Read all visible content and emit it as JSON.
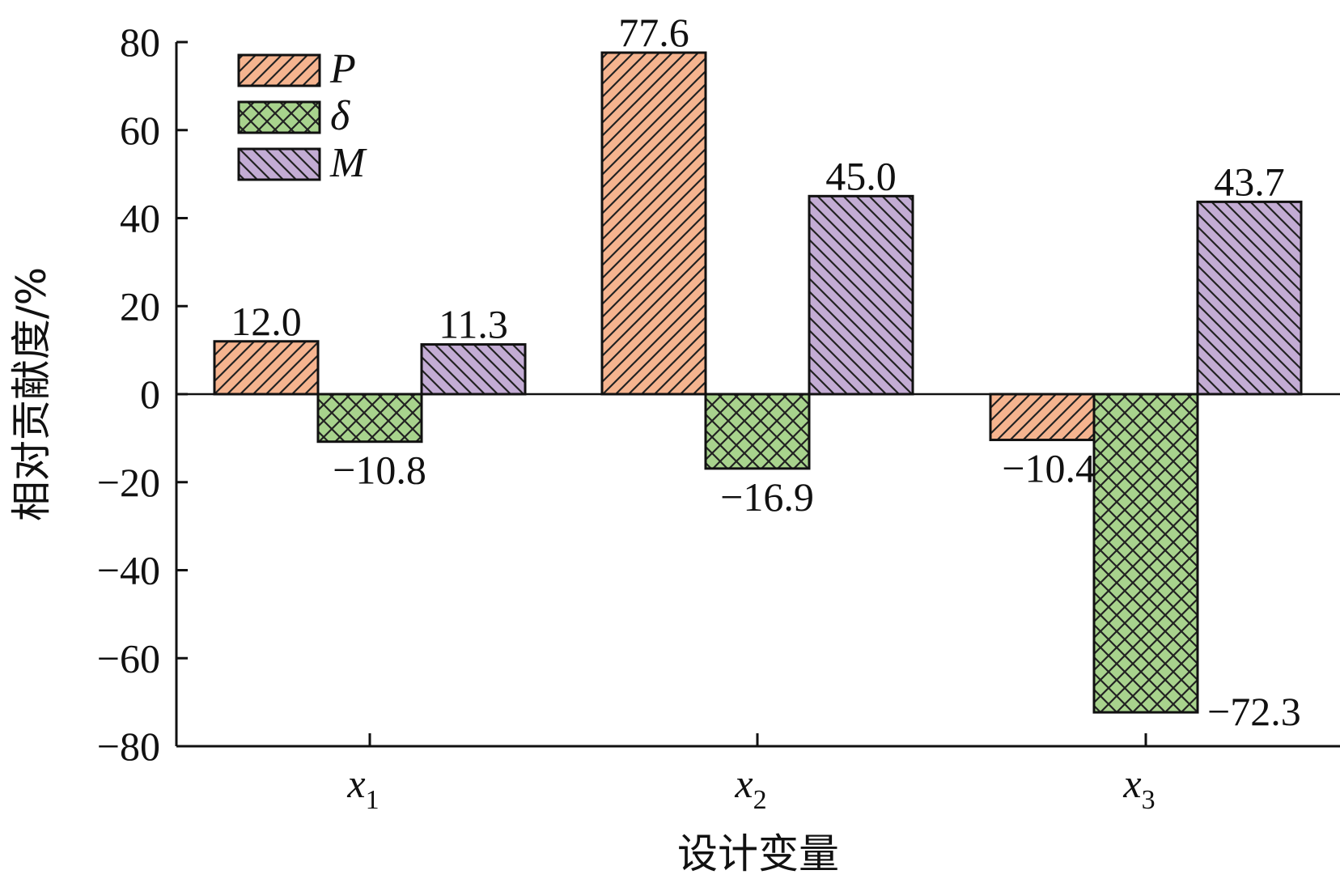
{
  "chart_data": {
    "type": "bar",
    "title": "",
    "xlabel": "设计变量",
    "ylabel": "相对贡献度/%",
    "ylim": [
      -80,
      80
    ],
    "yticks": [
      80,
      60,
      40,
      20,
      0,
      -20,
      -40,
      -60,
      -80
    ],
    "ytick_labels": [
      "80",
      "60",
      "40",
      "20",
      "0",
      "−20",
      "−40",
      "−60",
      "−80"
    ],
    "categories": [
      {
        "main": "x",
        "sub": "1"
      },
      {
        "main": "x",
        "sub": "2"
      },
      {
        "main": "x",
        "sub": "3"
      }
    ],
    "series": [
      {
        "name": "P",
        "color": "#f5b48f",
        "pattern": "diagonal-forward",
        "values": [
          12.0,
          77.6,
          -10.4
        ],
        "labels": [
          "12.0",
          "77.6",
          "−10.4"
        ]
      },
      {
        "name": "δ",
        "color": "#a8d38d",
        "pattern": "crosshatch",
        "values": [
          -10.8,
          -16.9,
          -72.3
        ],
        "labels": [
          "−10.8",
          "−16.9",
          "−72.3"
        ]
      },
      {
        "name": "M",
        "color": "#c3acd4",
        "pattern": "diagonal-backward",
        "values": [
          11.3,
          45.0,
          43.7
        ],
        "labels": [
          "11.3",
          "45.0",
          "43.7"
        ]
      }
    ],
    "grid": false,
    "legend_position": "top-left"
  }
}
